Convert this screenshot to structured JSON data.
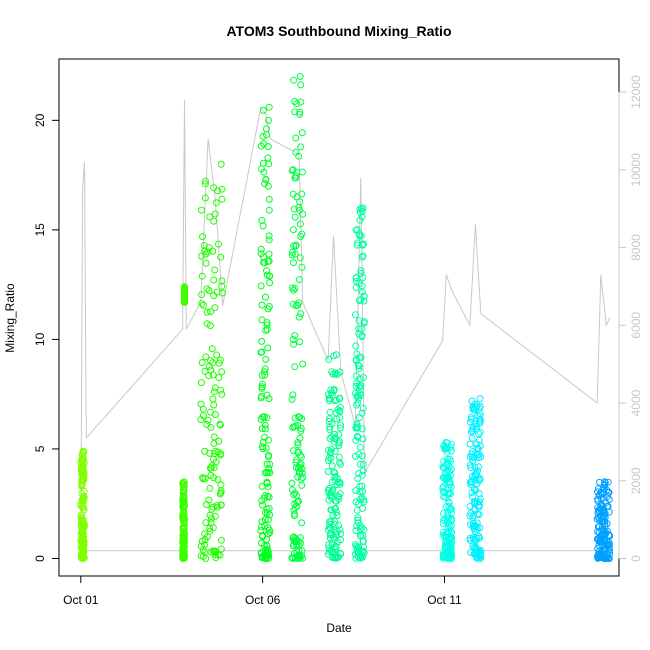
{
  "chart_data": {
    "type": "scatter",
    "title": "ATOM3 Southbound Mixing_Ratio",
    "xlabel": "Date",
    "ylabel": "Mixing_Ratio",
    "x_ticks": [
      {
        "value": 1,
        "label": "Oct 01"
      },
      {
        "value": 6,
        "label": "Oct 06"
      },
      {
        "value": 11,
        "label": "Oct 11"
      }
    ],
    "y_ticks": [
      0,
      5,
      10,
      15,
      20
    ],
    "y2_ticks": [
      0,
      2000,
      4000,
      6000,
      8000,
      10000,
      12000
    ],
    "xlim": [
      0.4,
      15.8
    ],
    "ylim": [
      -0.8,
      22.8
    ],
    "y2lim": [
      -450,
      12850
    ],
    "grid": false,
    "legend": "none",
    "colors": {
      "axis": "#000000",
      "secondary_axis": "#c8c8c8",
      "altitude_line": "#c8c8c8"
    },
    "series": [
      {
        "type": "points",
        "groups": [
          {
            "x": [
              1.0,
              1.1
            ],
            "ymin": 0.0,
            "ymax": 4.9,
            "color": "#80ff00"
          },
          {
            "x": [
              3.8,
              3.85
            ],
            "ymin": 0.0,
            "ymax": 3.5,
            "color": "#3fff00"
          },
          {
            "x": [
              3.85
            ],
            "ymin": 11.7,
            "ymax": 12.4,
            "color": "#3fff00"
          },
          {
            "x": [
              4.3,
              4.9
            ],
            "ymin": 0.0,
            "ymax": 18.0,
            "color": "#1fff00"
          },
          {
            "x": [
              5.95,
              6.2
            ],
            "ymin": 0.0,
            "ymax": 20.6,
            "color": "#00ff20"
          },
          {
            "x": [
              6.8,
              7.1
            ],
            "ymin": 0.0,
            "ymax": 22.0,
            "color": "#00ff40"
          },
          {
            "x": [
              7.8,
              8.15
            ],
            "ymin": 0.0,
            "ymax": 9.3,
            "color": "#00ff90"
          },
          {
            "x": [
              8.55,
              8.8
            ],
            "ymin": 0.0,
            "ymax": 16.0,
            "color": "#00ffa0"
          },
          {
            "x": [
              10.95,
              11.2
            ],
            "ymin": 0.0,
            "ymax": 5.3,
            "color": "#00ffe8"
          },
          {
            "x": [
              11.7,
              12.0
            ],
            "ymin": 0.0,
            "ymax": 7.3,
            "color": "#00f0ff"
          },
          {
            "x": [
              15.2,
              15.55
            ],
            "ymin": 0.0,
            "ymax": 3.5,
            "color": "#00a0ff"
          }
        ]
      },
      {
        "type": "altitude-line",
        "axis": "secondary",
        "points": [
          [
            1.0,
            200
          ],
          [
            1.05,
            9500
          ],
          [
            1.1,
            10200
          ],
          [
            1.15,
            3100
          ],
          [
            3.8,
            5900
          ],
          [
            3.85,
            11800
          ],
          [
            3.9,
            5900
          ],
          [
            4.3,
            6600
          ],
          [
            4.5,
            10800
          ],
          [
            4.7,
            9200
          ],
          [
            4.9,
            6500
          ],
          [
            5.95,
            11600
          ],
          [
            6.1,
            11400
          ],
          [
            6.2,
            10800
          ],
          [
            6.8,
            10500
          ],
          [
            7.0,
            10400
          ],
          [
            7.1,
            6600
          ],
          [
            7.8,
            5100
          ],
          [
            7.95,
            8300
          ],
          [
            8.15,
            4800
          ],
          [
            8.55,
            3400
          ],
          [
            8.7,
            9800
          ],
          [
            8.8,
            2200
          ],
          [
            10.95,
            5600
          ],
          [
            11.05,
            7300
          ],
          [
            11.2,
            6900
          ],
          [
            11.7,
            6000
          ],
          [
            11.85,
            8600
          ],
          [
            12.0,
            6300
          ],
          [
            15.2,
            4000
          ],
          [
            15.3,
            7300
          ],
          [
            15.45,
            6000
          ],
          [
            15.55,
            6200
          ]
        ]
      }
    ]
  }
}
